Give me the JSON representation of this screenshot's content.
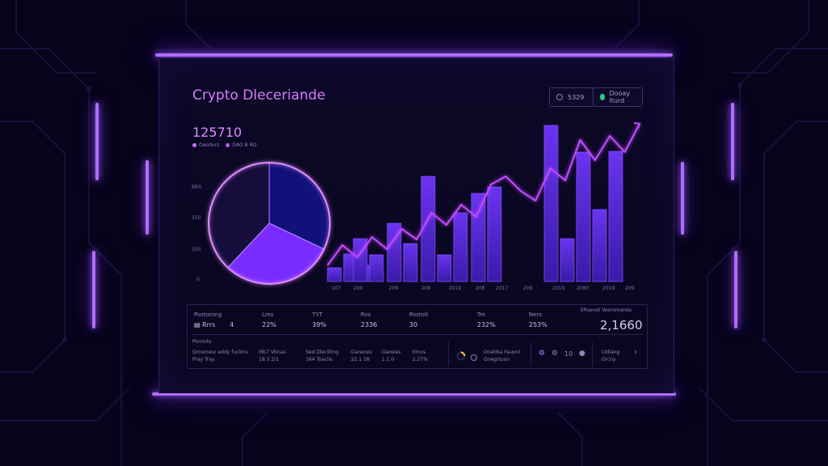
{
  "header": {
    "title": "Crypto Dleceriande",
    "button_one": "5329",
    "button_two": "Dooay lturd"
  },
  "summary": {
    "value": "125710",
    "legend": [
      "Oeodurs",
      "DAO B RO"
    ]
  },
  "y_axis_ticks": [
    "BRS",
    "150",
    "105",
    "0"
  ],
  "chart_data": {
    "type": "bar",
    "pie": {
      "values": [
        32,
        30,
        38
      ],
      "colors": [
        "#12117a",
        "#7a2cff",
        "#160d3c"
      ]
    },
    "categories": [
      "107",
      "200",
      "209",
      "208",
      "2019",
      "208",
      "2017",
      "209",
      "2019",
      "2080",
      "2019",
      "209"
    ],
    "bar_groups": [
      [
        17,
        34,
        20
      ],
      [
        53,
        33
      ],
      [
        72,
        47
      ],
      [
        130,
        33,
        85
      ],
      [
        109,
        117
      ],
      [
        193,
        53,
        160,
        89,
        161
      ]
    ],
    "line": [
      20,
      45,
      30,
      55,
      40,
      65,
      52,
      85,
      70,
      95,
      80,
      120,
      130,
      112,
      100,
      140,
      125,
      175,
      150,
      180,
      160,
      195
    ],
    "colors": {
      "bar": "#5a2de0",
      "line": "#c24bff"
    }
  },
  "stats": {
    "headers": [
      "Postoning",
      "Lms",
      "TYT",
      "Ros",
      "Postoit",
      "Tre",
      "Ners",
      "ERsevet Veorsmanes"
    ],
    "values": [
      "Rrrs",
      "4",
      "22%",
      "39%",
      "2336",
      "30",
      "232%",
      "253%"
    ],
    "total": "2,1660",
    "section_label": "Pormrts",
    "row2": [
      [
        "Grosmeur eddy fuclors",
        "Pray Tray"
      ],
      [
        "Mb7 Vtinas",
        "18.3 2/1"
      ],
      [
        "Sed Dlecilling",
        "164 Toaclis"
      ],
      [
        "Ganeces",
        "22.1 18"
      ],
      [
        "Gaosies",
        "1.1.0"
      ],
      [
        "Emvs",
        "2.27%"
      ]
    ],
    "row2_right": {
      "label_one": "Onetiba Fauonl",
      "label_two": "Gnegrtuon",
      "value": "10",
      "label_three": "Ltdiang",
      "label_four": "Grcny"
    },
    "icons": [
      "loading-ring-icon",
      "circle-icon",
      "gear-icon",
      "gear-icon",
      "settings-icon",
      "chevron-right-icon"
    ]
  }
}
